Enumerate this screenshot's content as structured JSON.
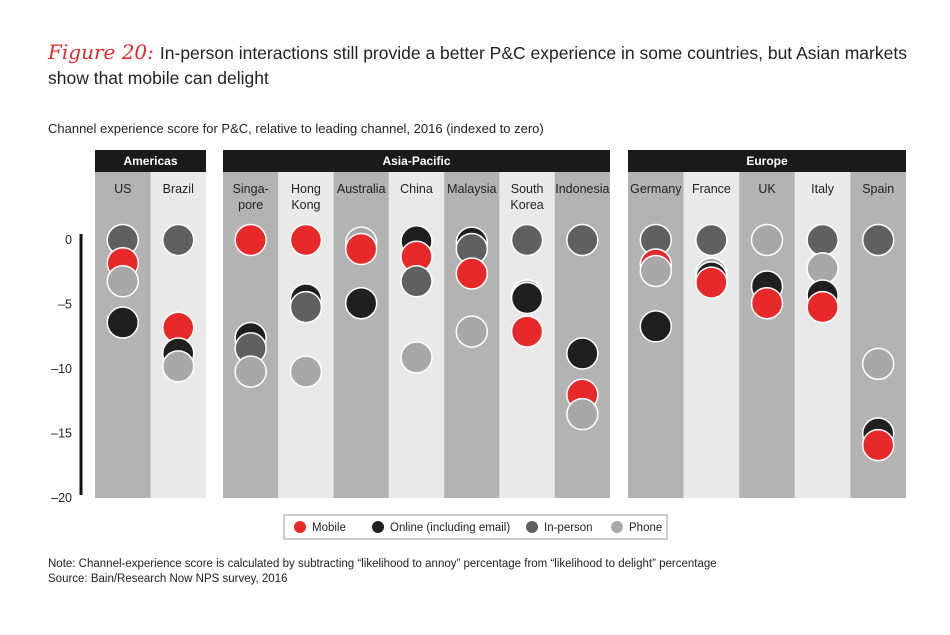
{
  "header": {
    "figure_label": "Figure 20:",
    "title": "In-person interactions still provide a better P&C experience in some countries, but Asian markets show that mobile can delight",
    "subtitle": "Channel experience score for P&C, relative to leading channel, 2016 (indexed to zero)"
  },
  "footer": {
    "note": "Note: Channel-experience score is calculated by subtracting “likelihood to annoy” percentage from “likelihood to delight” percentage",
    "source": "Source: Bain/Research Now NPS survey, 2016"
  },
  "colors": {
    "mobile": "#e8292a",
    "online": "#1f1f1f",
    "inperson": "#606060",
    "phone": "#a8a8a8",
    "band_dark": "#b3b3b3",
    "band_light": "#e9e9e9",
    "region_header": "#1a1a1a"
  },
  "chart_data": {
    "type": "scatter",
    "title": "",
    "ylabel": "",
    "ylim": [
      -20,
      0
    ],
    "yticks": [
      0,
      -5,
      -10,
      -15,
      -20
    ],
    "ytick_labels": [
      "0",
      "–5",
      "–10",
      "–15",
      "–20"
    ],
    "regions": [
      {
        "name": "Americas",
        "countries": [
          "US",
          "Brazil"
        ]
      },
      {
        "name": "Asia-Pacific",
        "countries": [
          "Singa-\npore",
          "Hong\nKong",
          "Australia",
          "China",
          "Malaysia",
          "South\nKorea",
          "Indonesia"
        ]
      },
      {
        "name": "Europe",
        "countries": [
          "Germany",
          "France",
          "UK",
          "Italy",
          "Spain"
        ]
      }
    ],
    "legend": [
      {
        "key": "mobile",
        "label": "Mobile"
      },
      {
        "key": "online",
        "label": "Online (including email)"
      },
      {
        "key": "inperson",
        "label": "In-person"
      },
      {
        "key": "phone",
        "label": "Phone"
      }
    ],
    "points": [
      {
        "country": "US",
        "inperson": 0,
        "mobile": -1.8,
        "phone": -3.2,
        "online": -6.4
      },
      {
        "country": "Brazil",
        "inperson": 0,
        "mobile": -6.8,
        "online": -8.8,
        "phone": -9.8
      },
      {
        "country": "Singa-\npore",
        "mobile": 0,
        "online": -7.6,
        "inperson": -8.4,
        "phone": -10.2
      },
      {
        "country": "Hong\nKong",
        "mobile": 0,
        "online": -4.6,
        "inperson": -5.2,
        "phone": -10.2
      },
      {
        "country": "Australia",
        "phone": -0.2,
        "mobile": -0.7,
        "online": -4.9
      },
      {
        "country": "China",
        "online": -0.1,
        "mobile": -1.3,
        "inperson": -3.2,
        "phone": -9.1
      },
      {
        "country": "Malaysia",
        "online": -0.2,
        "inperson": -0.7,
        "mobile": -2.6,
        "phone": -7.1
      },
      {
        "country": "South\nKorea",
        "inperson": 0,
        "phone": -4.3,
        "online": -4.5,
        "mobile": -7.1
      },
      {
        "country": "Indonesia",
        "inperson": 0,
        "online": -8.8,
        "mobile": -12.0,
        "phone": -13.5
      },
      {
        "country": "Germany",
        "inperson": 0,
        "mobile": -1.9,
        "phone": -2.4,
        "online": -6.7
      },
      {
        "country": "France",
        "inperson": 0,
        "phone": -2.6,
        "online": -2.9,
        "mobile": -3.3
      },
      {
        "country": "UK",
        "phone": 0,
        "online": -3.6,
        "mobile": -4.9
      },
      {
        "country": "Italy",
        "inperson": 0,
        "phone": -2.2,
        "online": -4.3,
        "mobile": -5.2
      },
      {
        "country": "Spain",
        "inperson": 0,
        "phone": -9.6,
        "online": -15.0,
        "mobile": -15.9
      }
    ]
  }
}
